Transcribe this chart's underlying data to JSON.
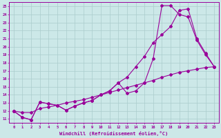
{
  "xlabel": "Windchill (Refroidissement éolien,°C)",
  "bg_color": "#cce8e8",
  "line_color": "#990099",
  "grid_color": "#aacccc",
  "xlim": [
    -0.5,
    23.5
  ],
  "ylim": [
    10.5,
    25.5
  ],
  "yticks": [
    11,
    12,
    13,
    14,
    15,
    16,
    17,
    18,
    19,
    20,
    21,
    22,
    23,
    24,
    25
  ],
  "xticks": [
    0,
    1,
    2,
    3,
    4,
    5,
    6,
    7,
    8,
    9,
    10,
    11,
    12,
    13,
    14,
    15,
    16,
    17,
    18,
    19,
    20,
    21,
    22,
    23
  ],
  "line1_x": [
    0,
    1,
    2,
    3,
    4,
    5,
    6,
    7,
    8,
    9,
    10,
    11,
    12,
    13,
    14,
    15,
    16,
    17,
    18,
    19,
    20,
    21,
    22,
    23
  ],
  "line1_y": [
    12.0,
    11.2,
    10.9,
    13.1,
    12.9,
    12.7,
    12.1,
    12.6,
    13.0,
    13.3,
    14.0,
    14.5,
    15.5,
    16.2,
    17.5,
    18.8,
    20.5,
    21.5,
    22.5,
    24.5,
    24.7,
    21.0,
    19.2,
    17.5
  ],
  "line2_x": [
    0,
    1,
    2,
    3,
    4,
    5,
    6,
    7,
    8,
    9,
    10,
    11,
    12,
    13,
    14,
    15,
    16,
    17,
    18,
    19,
    20,
    21,
    22,
    23
  ],
  "line2_y": [
    12.0,
    11.2,
    10.9,
    13.1,
    12.9,
    12.7,
    12.1,
    12.6,
    13.0,
    13.3,
    14.0,
    14.5,
    15.5,
    14.2,
    14.5,
    15.5,
    18.5,
    25.1,
    25.1,
    24.0,
    23.7,
    20.8,
    19.0,
    17.5
  ],
  "line3_x": [
    0,
    1,
    2,
    3,
    4,
    5,
    6,
    7,
    8,
    9,
    10,
    11,
    12,
    13,
    14,
    15,
    16,
    17,
    18,
    19,
    20,
    21,
    22,
    23
  ],
  "line3_y": [
    12.0,
    11.8,
    11.8,
    12.3,
    12.5,
    12.7,
    13.0,
    13.2,
    13.4,
    13.7,
    14.0,
    14.3,
    14.6,
    14.9,
    15.2,
    15.5,
    15.8,
    16.2,
    16.5,
    16.8,
    17.0,
    17.2,
    17.4,
    17.5
  ]
}
